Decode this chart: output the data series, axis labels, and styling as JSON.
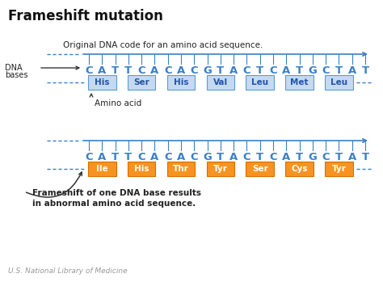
{
  "title": "Frameshift mutation",
  "bg_color": "#ffffff",
  "dna_color": "#3a80c8",
  "dna_bases": [
    "C",
    "A",
    "T",
    "T",
    "C",
    "A",
    "C",
    "A",
    "C",
    "G",
    "T",
    "A",
    "C",
    "T",
    "C",
    "A",
    "T",
    "G",
    "C",
    "T",
    "A",
    "T"
  ],
  "original_amino": [
    "His",
    "Ser",
    "His",
    "Val",
    "Leu",
    "Met",
    "Leu"
  ],
  "mutant_amino": [
    "Ile",
    "His",
    "Thr",
    "Tyr",
    "Ser",
    "Cys",
    "Tyr"
  ],
  "original_box_color": "#c5d9f1",
  "original_box_edge": "#5b9bd5",
  "mutant_box_color": "#f79320",
  "mutant_box_edge": "#d46f00",
  "original_label": "Original DNA code for an amino acid sequence.",
  "mutant_label_1": "Frameshift of one DNA base results",
  "mutant_label_2": "in abnormal amino acid sequence.",
  "dna_bases_label_1": "DNA",
  "dna_bases_label_2": "bases",
  "amino_acid_label": "Amino acid",
  "footer": "U.S. National Library of Medicine",
  "amino_text_color_orig": "#2255aa",
  "amino_text_color_mut": "#ffffff"
}
